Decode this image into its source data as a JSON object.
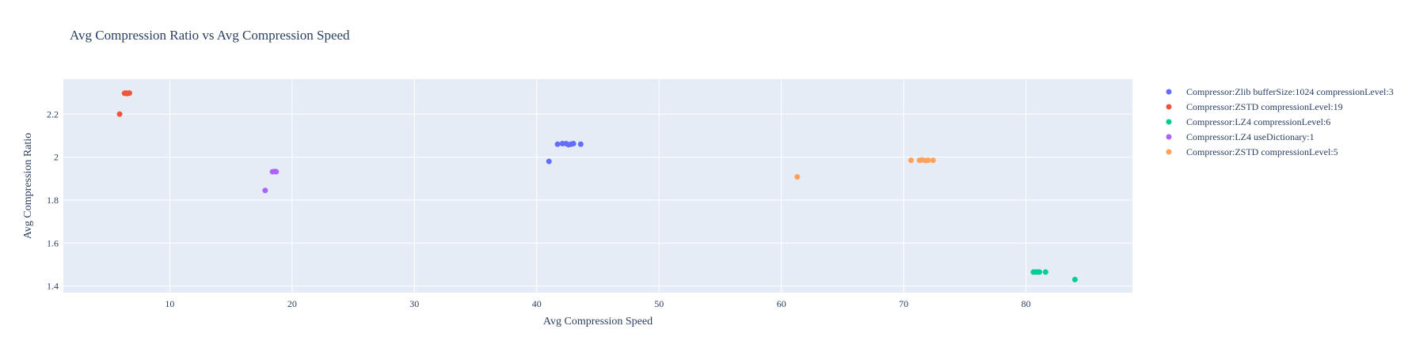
{
  "chart_data": {
    "type": "scatter",
    "title": "Avg Compression Ratio vs Avg Compression Speed",
    "xlabel": "Avg Compression Speed",
    "ylabel": "Avg Compression Ratio",
    "xlim": [
      1.3,
      88.7
    ],
    "ylim": [
      1.369,
      2.363
    ],
    "x_ticks": [
      10,
      20,
      30,
      40,
      50,
      60,
      70,
      80
    ],
    "y_ticks": [
      1.4,
      1.6,
      1.8,
      2,
      2.2
    ],
    "y_tick_labels": [
      "1.4",
      "1.6",
      "1.8",
      "2",
      "2.2"
    ],
    "grid": true,
    "legend_position": "right",
    "plot_background": "#e5ecf6",
    "series": [
      {
        "name": "Compressor:Zlib bufferSize:1024 compressionLevel:3",
        "color": "#636efa",
        "points": [
          {
            "x": 41.0,
            "y": 1.98
          },
          {
            "x": 41.7,
            "y": 2.06
          },
          {
            "x": 42.1,
            "y": 2.063
          },
          {
            "x": 42.4,
            "y": 2.063
          },
          {
            "x": 42.6,
            "y": 2.058
          },
          {
            "x": 42.8,
            "y": 2.06
          },
          {
            "x": 43.0,
            "y": 2.063
          },
          {
            "x": 43.6,
            "y": 2.06
          }
        ]
      },
      {
        "name": "Compressor:ZSTD compressionLevel:19",
        "color": "#ef553b",
        "points": [
          {
            "x": 5.9,
            "y": 2.2
          },
          {
            "x": 6.3,
            "y": 2.297
          },
          {
            "x": 6.4,
            "y": 2.298
          },
          {
            "x": 6.5,
            "y": 2.296
          },
          {
            "x": 6.6,
            "y": 2.297
          },
          {
            "x": 6.7,
            "y": 2.298
          }
        ]
      },
      {
        "name": "Compressor:LZ4 compressionLevel:6",
        "color": "#00cc96",
        "points": [
          {
            "x": 80.6,
            "y": 1.465
          },
          {
            "x": 80.8,
            "y": 1.465
          },
          {
            "x": 81.0,
            "y": 1.465
          },
          {
            "x": 81.1,
            "y": 1.465
          },
          {
            "x": 81.6,
            "y": 1.465
          },
          {
            "x": 84.0,
            "y": 1.43
          }
        ]
      },
      {
        "name": "Compressor:LZ4 useDictionary:1",
        "color": "#ab63fa",
        "points": [
          {
            "x": 17.8,
            "y": 1.845
          },
          {
            "x": 18.4,
            "y": 1.932
          },
          {
            "x": 18.6,
            "y": 1.933
          },
          {
            "x": 18.7,
            "y": 1.932
          }
        ]
      },
      {
        "name": "Compressor:ZSTD compressionLevel:5",
        "color": "#ffa15a",
        "points": [
          {
            "x": 61.3,
            "y": 1.908
          },
          {
            "x": 70.6,
            "y": 1.985
          },
          {
            "x": 71.3,
            "y": 1.985
          },
          {
            "x": 71.5,
            "y": 1.987
          },
          {
            "x": 71.8,
            "y": 1.984
          },
          {
            "x": 72.0,
            "y": 1.985
          },
          {
            "x": 72.4,
            "y": 1.985
          }
        ]
      }
    ]
  }
}
